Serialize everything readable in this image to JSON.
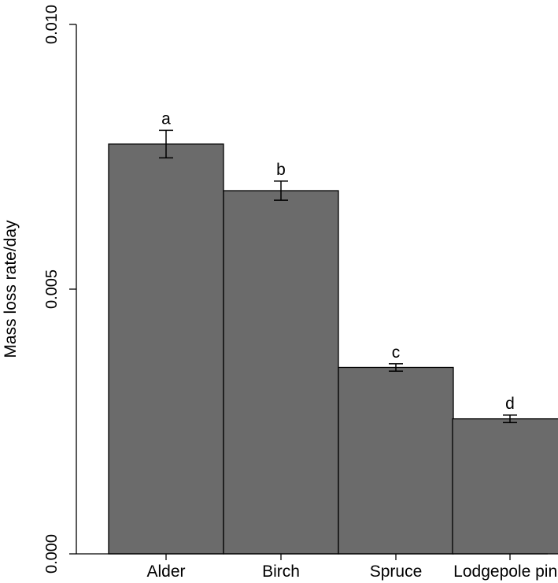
{
  "chart_data": {
    "type": "bar",
    "ylabel": "Mass loss rate/day",
    "ylim": [
      0,
      0.01
    ],
    "yticks": [
      {
        "value": 0,
        "label": "0.000"
      },
      {
        "value": 0.005,
        "label": "0.005"
      },
      {
        "value": 0.01,
        "label": "0.010"
      }
    ],
    "categories": [
      "Alder",
      "Birch",
      "Spruce",
      "Lodgepole pine"
    ],
    "values": [
      0.00774,
      0.00686,
      0.00352,
      0.00255
    ],
    "errors": [
      0.00026,
      0.00018,
      7e-05,
      7e-05
    ],
    "significance_labels": [
      "a",
      "b",
      "c",
      "d"
    ],
    "bar_color": "#6b6b6b",
    "grid": false
  }
}
